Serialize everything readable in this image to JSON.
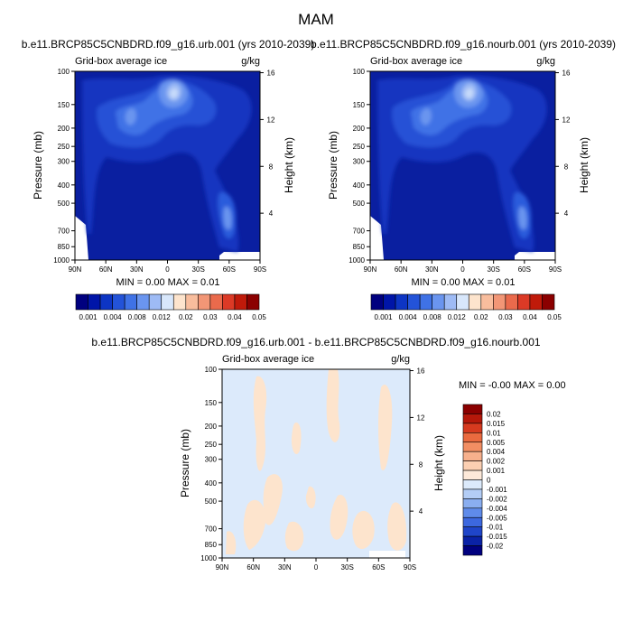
{
  "page": {
    "title": "MAM",
    "panel_titles": [
      "b.e11.BRCP85C5CNBDRD.f09_g16.urb.001 (yrs 2010-2039)",
      "b.e11.BRCP85C5CNBDRD.f09_g16.nourb.001 (yrs 2010-2039)",
      "b.e11.BRCP85C5CNBDRD.f09_g16.urb.001 - b.e11.BRCP85C5CNBDRD.f09_g16.nourb.001"
    ],
    "left_label": "Grid-box average ice",
    "right_label": "g/kg",
    "ylabel": "Pressure (mb)",
    "ylabel_right": "Height (km)",
    "minmax_top": "MIN =   0.00  MAX =   0.01",
    "minmax_diff": "MIN =  -0.00  MAX =   0.00"
  },
  "chart_data": [
    {
      "type": "heatmap",
      "panel": "top-left",
      "x_ticks": [
        "90N",
        "60N",
        "30N",
        "0",
        "30S",
        "60S",
        "90S"
      ],
      "y_ticks": [
        "100",
        "150",
        "200",
        "250",
        "300",
        "400",
        "500",
        "700",
        "850",
        "1000"
      ],
      "height_ticks": [
        "16",
        "12",
        "8",
        "4"
      ],
      "colorbar_levels": [
        "0.001",
        "0.004",
        "0.008",
        "0.012",
        "0.02",
        "0.03",
        "0.04",
        "0.05"
      ],
      "colorbar_colors": [
        "#00007f",
        "#0015a8",
        "#0d35c4",
        "#2353d8",
        "#3f72e6",
        "#6a95ef",
        "#9ebbf5",
        "#d8e7fb",
        "#fde4cd",
        "#f8bd9d",
        "#f29676",
        "#ea6a4c",
        "#dc3a26",
        "#c01a0a",
        "#8b0000"
      ],
      "ylim": [
        1000,
        100
      ],
      "xlim": [
        "90N",
        "90S"
      ]
    },
    {
      "type": "heatmap",
      "panel": "top-right",
      "x_ticks": [
        "90N",
        "60N",
        "30N",
        "0",
        "30S",
        "60S",
        "90S"
      ],
      "y_ticks": [
        "100",
        "150",
        "200",
        "250",
        "300",
        "400",
        "500",
        "700",
        "850",
        "1000"
      ],
      "height_ticks": [
        "16",
        "12",
        "8",
        "4"
      ],
      "colorbar_levels": [
        "0.001",
        "0.004",
        "0.008",
        "0.012",
        "0.02",
        "0.03",
        "0.04",
        "0.05"
      ],
      "ylim": [
        1000,
        100
      ],
      "xlim": [
        "90N",
        "90S"
      ]
    },
    {
      "type": "heatmap",
      "panel": "bottom-difference",
      "x_ticks": [
        "90N",
        "60N",
        "30N",
        "0",
        "30S",
        "60S",
        "90S"
      ],
      "y_ticks": [
        "100",
        "150",
        "200",
        "250",
        "300",
        "400",
        "500",
        "700",
        "850",
        "1000"
      ],
      "height_ticks": [
        "16",
        "12",
        "8",
        "4"
      ],
      "colorbar_levels": [
        "0.02",
        "0.015",
        "0.01",
        "0.005",
        "0.004",
        "0.002",
        "0.001",
        "0",
        "-0.001",
        "-0.002",
        "-0.004",
        "-0.005",
        "-0.01",
        "-0.015",
        "-0.02"
      ],
      "colorbar_colors": [
        "#8b0000",
        "#b5180a",
        "#d63a1f",
        "#ea6a3f",
        "#f28e63",
        "#f7b08c",
        "#fbcfb2",
        "#fde9d9",
        "#dceafb",
        "#b3cdf6",
        "#8aaef0",
        "#5f8bea",
        "#3c68df",
        "#1f45c9",
        "#0a22a6",
        "#00007f"
      ],
      "ylim": [
        1000,
        100
      ],
      "xlim": [
        "90N",
        "90S"
      ]
    }
  ]
}
